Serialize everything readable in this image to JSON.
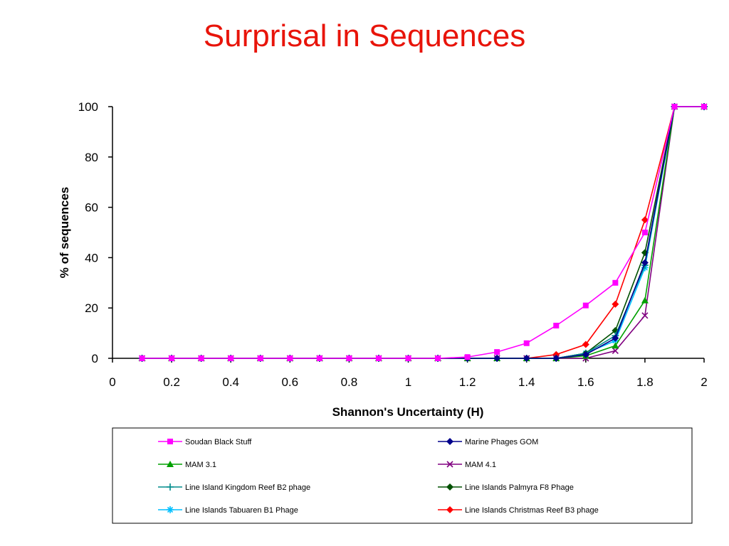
{
  "slide": {
    "title": "Surprisal in Sequences"
  },
  "chart_data": {
    "type": "line",
    "xlabel": "Shannon's Uncertainty (H)",
    "ylabel": "% of  sequences",
    "xlim": [
      0,
      2
    ],
    "ylim": [
      0,
      100
    ],
    "x_ticks": [
      0,
      0.2,
      0.4,
      0.6,
      0.8,
      1,
      1.2,
      1.4,
      1.6,
      1.8,
      2
    ],
    "y_ticks": [
      0,
      20,
      40,
      60,
      80,
      100
    ],
    "x_tick_labels": [
      "0",
      "0.2",
      "0.4",
      "0.6",
      "0.8",
      "1",
      "1.2",
      "1.4",
      "1.6",
      "1.8",
      "2"
    ],
    "y_tick_labels": [
      "0",
      "20",
      "40",
      "60",
      "80",
      "100"
    ],
    "grid": false,
    "legend_position": "bottom",
    "x": [
      0.1,
      0.2,
      0.3,
      0.4,
      0.5,
      0.6,
      0.7,
      0.8,
      0.9,
      1.0,
      1.1,
      1.2,
      1.3,
      1.4,
      1.5,
      1.6,
      1.7,
      1.8,
      1.9,
      2.0
    ],
    "series": [
      {
        "name": "Soudan Black Stuff",
        "color": "#ff00ff",
        "marker": "square",
        "values": [
          0,
          0,
          0,
          0,
          0,
          0,
          0,
          0,
          0,
          0,
          0,
          0.5,
          2.5,
          6,
          13,
          21,
          30,
          50,
          100,
          100
        ]
      },
      {
        "name": "Marine Phages GOM",
        "color": "#00008b",
        "marker": "diamond",
        "values": [
          0,
          0,
          0,
          0,
          0,
          0,
          0,
          0,
          0,
          0,
          0,
          0,
          0,
          0,
          0,
          1.5,
          8,
          38,
          100,
          100
        ]
      },
      {
        "name": "MAM 3.1",
        "color": "#00a000",
        "marker": "triangle",
        "values": [
          0,
          0,
          0,
          0,
          0,
          0,
          0,
          0,
          0,
          0,
          0,
          0,
          0,
          0,
          0,
          1,
          5,
          23,
          100,
          100
        ]
      },
      {
        "name": "MAM 4.1",
        "color": "#800080",
        "marker": "x",
        "values": [
          0,
          0,
          0,
          0,
          0,
          0,
          0,
          0,
          0,
          0,
          0,
          0,
          0,
          0,
          0,
          0,
          3,
          17,
          100,
          100
        ]
      },
      {
        "name": "Line Island Kingdom Reef B2 phage",
        "color": "#008b8b",
        "marker": "plus",
        "values": [
          0,
          0,
          0,
          0,
          0,
          0,
          0,
          0,
          0,
          0,
          0,
          0,
          0,
          0,
          0,
          2,
          9,
          37,
          100,
          100
        ]
      },
      {
        "name": "Line Islands Palmyra F8 Phage",
        "color": "#005000",
        "marker": "diamond",
        "values": [
          0,
          0,
          0,
          0,
          0,
          0,
          0,
          0,
          0,
          0,
          0,
          0,
          0,
          0,
          0,
          2,
          11,
          42,
          100,
          100
        ]
      },
      {
        "name": "Line Islands Tabuaren B1 Phage",
        "color": "#00bfff",
        "marker": "star",
        "values": [
          0,
          0,
          0,
          0,
          0,
          0,
          0,
          0,
          0,
          0,
          0,
          0,
          0,
          0,
          0,
          2,
          7,
          36,
          100,
          100
        ]
      },
      {
        "name": "Line Islands Christmas Reef B3 phage",
        "color": "#ff0000",
        "marker": "diamond",
        "values": [
          0,
          0,
          0,
          0,
          0,
          0,
          0,
          0,
          0,
          0,
          0,
          0,
          0,
          0,
          1.5,
          5.5,
          21.5,
          55,
          100,
          100
        ]
      }
    ]
  }
}
